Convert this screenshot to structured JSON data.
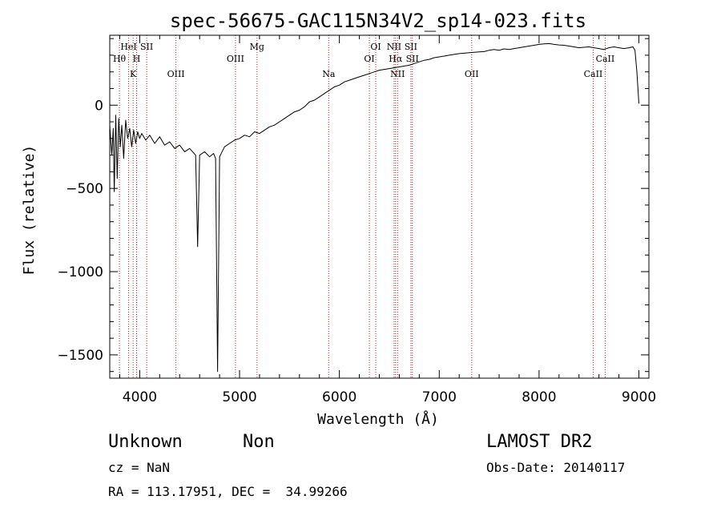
{
  "chart_data": {
    "type": "line",
    "title": "spec-56675-GAC115N34V2_sp14-023.fits",
    "xlabel": "Wavelength (Å)",
    "ylabel": "Flux (relative)",
    "xlim": [
      3700,
      9100
    ],
    "ylim": [
      -1640,
      420
    ],
    "xticks": [
      4000,
      5000,
      6000,
      7000,
      8000,
      9000
    ],
    "yticks": [
      -1500,
      -1000,
      -500,
      0
    ],
    "grid": false,
    "line_color": "#000000",
    "marker_color": "#b22222",
    "series": [
      {
        "values": [
          [
            3700,
            -120
          ],
          [
            3720,
            -300
          ],
          [
            3735,
            -140
          ],
          [
            3745,
            -520
          ],
          [
            3760,
            -60
          ],
          [
            3775,
            -440
          ],
          [
            3790,
            -80
          ],
          [
            3805,
            -250
          ],
          [
            3820,
            -120
          ],
          [
            3840,
            -320
          ],
          [
            3860,
            -90
          ],
          [
            3880,
            -200
          ],
          [
            3900,
            -140
          ],
          [
            3920,
            -250
          ],
          [
            3940,
            -150
          ],
          [
            3960,
            -230
          ],
          [
            3980,
            -160
          ],
          [
            4000,
            -200
          ],
          [
            4020,
            -170
          ],
          [
            4060,
            -210
          ],
          [
            4100,
            -180
          ],
          [
            4150,
            -230
          ],
          [
            4200,
            -190
          ],
          [
            4250,
            -240
          ],
          [
            4300,
            -220
          ],
          [
            4350,
            -260
          ],
          [
            4400,
            -240
          ],
          [
            4450,
            -280
          ],
          [
            4500,
            -260
          ],
          [
            4560,
            -300
          ],
          [
            4580,
            -850
          ],
          [
            4600,
            -300
          ],
          [
            4650,
            -280
          ],
          [
            4700,
            -310
          ],
          [
            4740,
            -290
          ],
          [
            4760,
            -320
          ],
          [
            4780,
            -1600
          ],
          [
            4800,
            -310
          ],
          [
            4850,
            -250
          ],
          [
            4900,
            -230
          ],
          [
            4950,
            -210
          ],
          [
            5000,
            -200
          ],
          [
            5050,
            -180
          ],
          [
            5100,
            -190
          ],
          [
            5150,
            -160
          ],
          [
            5200,
            -170
          ],
          [
            5250,
            -150
          ],
          [
            5300,
            -130
          ],
          [
            5350,
            -120
          ],
          [
            5400,
            -100
          ],
          [
            5450,
            -80
          ],
          [
            5500,
            -60
          ],
          [
            5550,
            -40
          ],
          [
            5600,
            -30
          ],
          [
            5650,
            -10
          ],
          [
            5700,
            20
          ],
          [
            5750,
            30
          ],
          [
            5800,
            50
          ],
          [
            5850,
            70
          ],
          [
            5900,
            90
          ],
          [
            5950,
            110
          ],
          [
            6000,
            120
          ],
          [
            6050,
            140
          ],
          [
            6100,
            150
          ],
          [
            6150,
            160
          ],
          [
            6200,
            170
          ],
          [
            6250,
            180
          ],
          [
            6300,
            190
          ],
          [
            6350,
            200
          ],
          [
            6400,
            210
          ],
          [
            6450,
            215
          ],
          [
            6500,
            220
          ],
          [
            6550,
            225
          ],
          [
            6600,
            230
          ],
          [
            6650,
            235
          ],
          [
            6700,
            240
          ],
          [
            6750,
            250
          ],
          [
            6800,
            260
          ],
          [
            6850,
            270
          ],
          [
            6900,
            275
          ],
          [
            6950,
            285
          ],
          [
            7000,
            290
          ],
          [
            7050,
            295
          ],
          [
            7100,
            300
          ],
          [
            7150,
            305
          ],
          [
            7200,
            310
          ],
          [
            7250,
            312
          ],
          [
            7300,
            315
          ],
          [
            7350,
            318
          ],
          [
            7400,
            320
          ],
          [
            7450,
            322
          ],
          [
            7500,
            330
          ],
          [
            7550,
            335
          ],
          [
            7600,
            330
          ],
          [
            7650,
            338
          ],
          [
            7700,
            335
          ],
          [
            7750,
            340
          ],
          [
            7800,
            345
          ],
          [
            7850,
            350
          ],
          [
            7900,
            355
          ],
          [
            7950,
            360
          ],
          [
            8000,
            365
          ],
          [
            8050,
            368
          ],
          [
            8100,
            370
          ],
          [
            8150,
            365
          ],
          [
            8200,
            362
          ],
          [
            8250,
            360
          ],
          [
            8300,
            355
          ],
          [
            8350,
            350
          ],
          [
            8400,
            345
          ],
          [
            8450,
            348
          ],
          [
            8500,
            350
          ],
          [
            8550,
            345
          ],
          [
            8600,
            340
          ],
          [
            8650,
            335
          ],
          [
            8700,
            345
          ],
          [
            8750,
            350
          ],
          [
            8800,
            345
          ],
          [
            8850,
            340
          ],
          [
            8900,
            345
          ],
          [
            8940,
            350
          ],
          [
            8960,
            330
          ],
          [
            8980,
            200
          ],
          [
            9000,
            10
          ]
        ]
      }
    ],
    "line_markers": [
      {
        "label": "Hθ",
        "x": 3797,
        "row": 2
      },
      {
        "label": "HeI",
        "x": 3889,
        "row": 1
      },
      {
        "label": "K",
        "x": 3934,
        "row": 3
      },
      {
        "label": "H",
        "x": 3969,
        "row": 2
      },
      {
        "label": "SII",
        "x": 4070,
        "row": 1
      },
      {
        "label": "OIII",
        "x": 4363,
        "row": 3
      },
      {
        "label": "OIII",
        "x": 4959,
        "row": 2
      },
      {
        "label": "Mg",
        "x": 5175,
        "row": 1
      },
      {
        "label": "Na",
        "x": 5893,
        "row": 3
      },
      {
        "label": "OI",
        "x": 6300,
        "row": 2
      },
      {
        "label": "OI",
        "x": 6364,
        "row": 1
      },
      {
        "label": "NII",
        "x": 6548,
        "row": 1
      },
      {
        "label": "Hα",
        "x": 6563,
        "row": 2
      },
      {
        "label": "NII",
        "x": 6583,
        "row": 3
      },
      {
        "label": "SII",
        "x": 6716,
        "row": 1
      },
      {
        "label": "SII",
        "x": 6731,
        "row": 2
      },
      {
        "label": "OII",
        "x": 7325,
        "row": 3
      },
      {
        "label": "CaII",
        "x": 8542,
        "row": 3
      },
      {
        "label": "CaII",
        "x": 8662,
        "row": 2
      }
    ]
  },
  "info": {
    "class": "Unknown",
    "subclass": "Non",
    "survey": "LAMOST DR2",
    "redshift": "cz = NaN",
    "obs_date": "Obs-Date: 20140117",
    "coords": "RA = 113.17951, DEC =  34.99266"
  }
}
